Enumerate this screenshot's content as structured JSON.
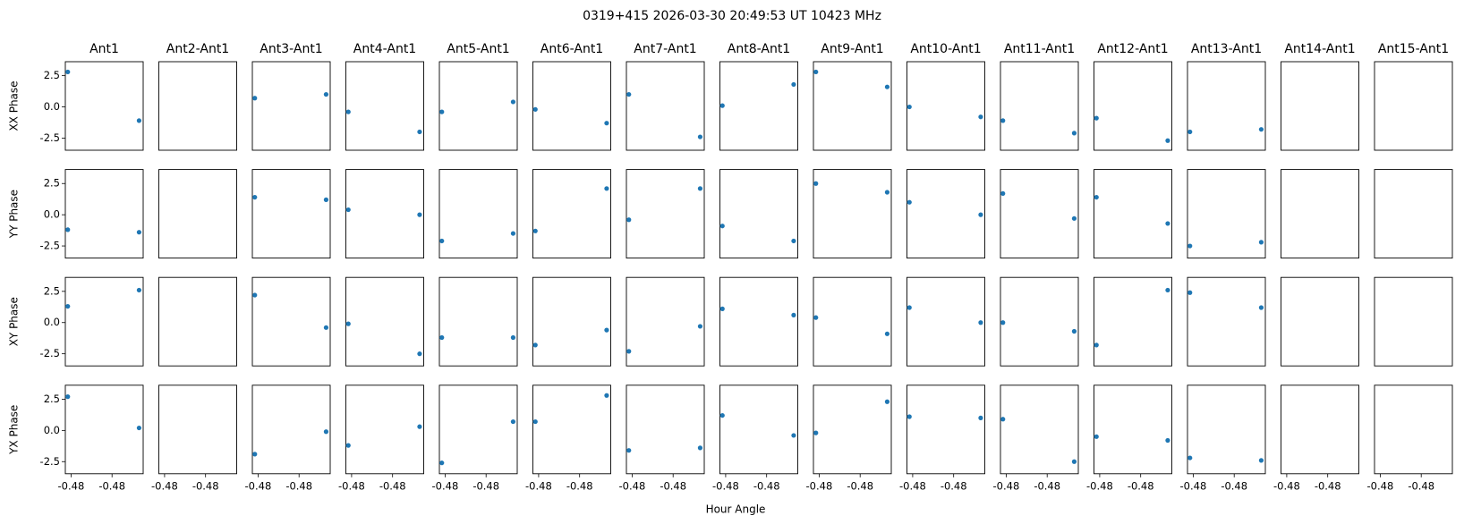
{
  "chart_data": {
    "type": "scatter",
    "title": "0319+415  2026-03-30 20:49:53 UT  10423 MHz",
    "xlabel": "Hour Angle",
    "color": "#1f77b4",
    "columns": [
      "Ant1",
      "Ant2-Ant1",
      "Ant3-Ant1",
      "Ant4-Ant1",
      "Ant5-Ant1",
      "Ant6-Ant1",
      "Ant7-Ant1",
      "Ant8-Ant1",
      "Ant9-Ant1",
      "Ant10-Ant1",
      "Ant11-Ant1",
      "Ant12-Ant1",
      "Ant13-Ant1",
      "Ant14-Ant1",
      "Ant15-Ant1"
    ],
    "x": [
      -0.4829,
      -0.4742
    ],
    "xlim": [
      -0.4832,
      -0.4737
    ],
    "xticks": [
      {
        "value": -0.4825,
        "label": "-0.48"
      },
      {
        "value": -0.4775,
        "label": "-0.48"
      }
    ],
    "ylim": [
      -3.47,
      3.62
    ],
    "yticks": [
      -2.5,
      {
        "value": 0,
        "label": "0.0"
      },
      2.5
    ],
    "rows": [
      {
        "ylabel": "XX Phase",
        "values": [
          [
            2.8,
            -1.1
          ],
          [
            null,
            null
          ],
          [
            0.7,
            1.0
          ],
          [
            -0.4,
            -2.0
          ],
          [
            -0.4,
            0.4
          ],
          [
            -0.2,
            -1.3
          ],
          [
            1.0,
            -2.4
          ],
          [
            0.1,
            1.8
          ],
          [
            2.8,
            1.6
          ],
          [
            0.0,
            -0.8
          ],
          [
            -1.1,
            -2.1
          ],
          [
            -0.9,
            -2.7
          ],
          [
            -2.0,
            -1.8
          ],
          [
            null,
            null
          ],
          [
            null,
            null
          ]
        ]
      },
      {
        "ylabel": "YY Phase",
        "values": [
          [
            -1.2,
            -1.4
          ],
          [
            null,
            null
          ],
          [
            1.4,
            1.2
          ],
          [
            0.4,
            0.0
          ],
          [
            -2.1,
            -1.5
          ],
          [
            -1.3,
            2.1
          ],
          [
            -0.4,
            2.1
          ],
          [
            -0.9,
            -2.1
          ],
          [
            2.5,
            1.8
          ],
          [
            1.0,
            0.0
          ],
          [
            1.7,
            -0.3
          ],
          [
            1.4,
            -0.7
          ],
          [
            -2.5,
            -2.2
          ],
          [
            null,
            null
          ],
          [
            null,
            null
          ]
        ]
      },
      {
        "ylabel": "XY Phase",
        "values": [
          [
            1.3,
            2.6
          ],
          [
            null,
            null
          ],
          [
            2.2,
            -0.4
          ],
          [
            -0.1,
            -2.5
          ],
          [
            -1.2,
            -1.2
          ],
          [
            -1.8,
            -0.6
          ],
          [
            -2.3,
            -0.3
          ],
          [
            1.1,
            0.6
          ],
          [
            0.4,
            -0.9
          ],
          [
            1.2,
            0.0
          ],
          [
            0.0,
            -0.7
          ],
          [
            -1.8,
            2.6
          ],
          [
            2.4,
            1.2
          ],
          [
            null,
            null
          ],
          [
            null,
            null
          ]
        ]
      },
      {
        "ylabel": "YX Phase",
        "values": [
          [
            2.7,
            0.2
          ],
          [
            null,
            null
          ],
          [
            -1.9,
            -0.1
          ],
          [
            -1.2,
            0.3
          ],
          [
            -2.6,
            0.7
          ],
          [
            0.7,
            2.8
          ],
          [
            -1.6,
            -1.4
          ],
          [
            1.2,
            -0.4
          ],
          [
            -0.2,
            2.3
          ],
          [
            1.1,
            1.0
          ],
          [
            0.9,
            -2.5
          ],
          [
            -0.5,
            -0.8
          ],
          [
            -2.2,
            -2.4
          ],
          [
            null,
            null
          ],
          [
            null,
            null
          ]
        ]
      }
    ]
  }
}
